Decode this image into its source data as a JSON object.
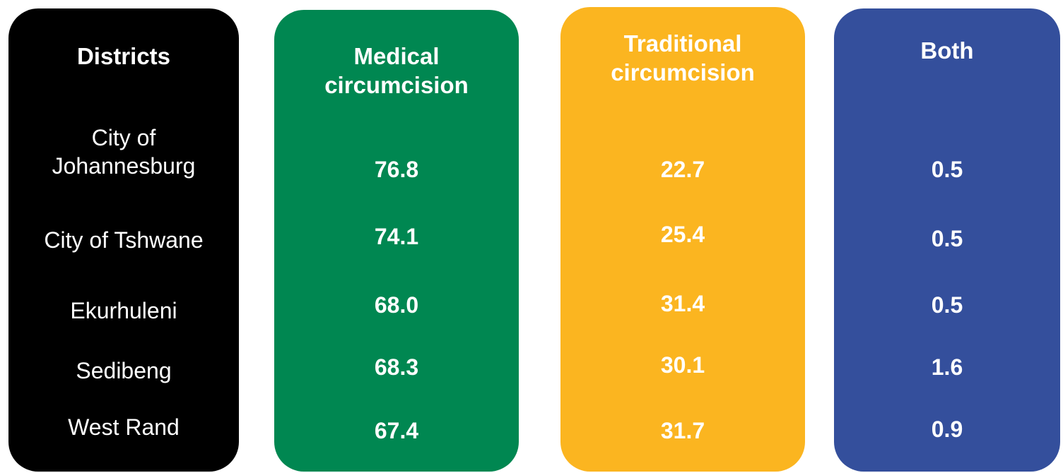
{
  "columns": [
    {
      "header": "Districts",
      "cells": [
        "City of Johannesburg",
        "City of Tshwane",
        "Ekurhuleni",
        "Sedibeng",
        "West Rand"
      ]
    },
    {
      "header": "Medical circumcision",
      "cells": [
        "76.8",
        "74.1",
        "68.0",
        "68.3",
        "67.4"
      ]
    },
    {
      "header": "Traditional circumcision",
      "cells": [
        "22.7",
        "25.4",
        "31.4",
        "30.1",
        "31.7"
      ]
    },
    {
      "header": "Both",
      "cells": [
        "0.5",
        "0.5",
        "0.5",
        "1.6",
        "0.9"
      ]
    }
  ]
}
